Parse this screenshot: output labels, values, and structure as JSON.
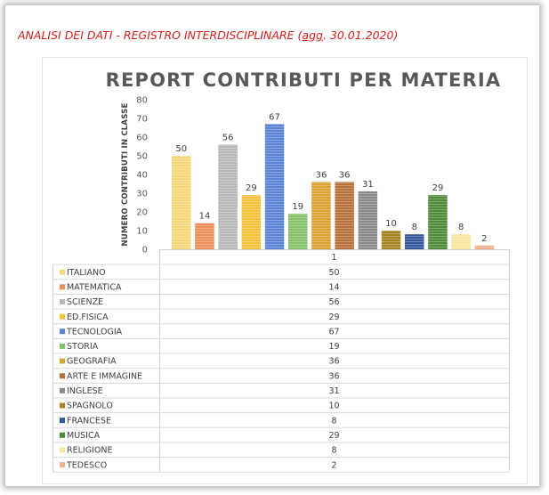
{
  "header": {
    "prefix": "ANALISI DEI DATI - REGISTRO INTERDISCIPLINARE (",
    "underlined": "agg",
    "suffix": ". 30.01.2020)"
  },
  "chart_data": {
    "type": "bar",
    "title": "REPORT CONTRIBUTI PER MATERIA",
    "xlabel": "",
    "ylabel": "NUMERO CONTRIBUTI IN CLASSE",
    "ylim": [
      0,
      80
    ],
    "yticks": [
      0,
      10,
      20,
      30,
      40,
      50,
      60,
      70,
      80
    ],
    "categories": [
      "1"
    ],
    "legend": "data table below chart",
    "series": [
      {
        "name": "ITALIANO",
        "values": [
          50
        ],
        "color": "#f5d77a"
      },
      {
        "name": "MATEMATICA",
        "values": [
          14
        ],
        "color": "#ed8f5a"
      },
      {
        "name": "SCIENZE",
        "values": [
          56
        ],
        "color": "#b8b8b8"
      },
      {
        "name": "ED.FISICA",
        "values": [
          29
        ],
        "color": "#f3c33d"
      },
      {
        "name": "TECNOLOGIA",
        "values": [
          67
        ],
        "color": "#5b83d3"
      },
      {
        "name": "STORIA",
        "values": [
          19
        ],
        "color": "#86c06a"
      },
      {
        "name": "GEOGRAFIA",
        "values": [
          36
        ],
        "color": "#d9a233"
      },
      {
        "name": "ARTE E IMMAGINE",
        "values": [
          36
        ],
        "color": "#b8703a"
      },
      {
        "name": "INGLESE",
        "values": [
          31
        ],
        "color": "#8a8a8a"
      },
      {
        "name": "SPAGNOLO",
        "values": [
          10
        ],
        "color": "#a88524"
      },
      {
        "name": "FRANCESE",
        "values": [
          8
        ],
        "color": "#34579b"
      },
      {
        "name": "MUSICA",
        "values": [
          29
        ],
        "color": "#4f8a3a"
      },
      {
        "name": "RELIGIONE",
        "values": [
          8
        ],
        "color": "#f7e6a0"
      },
      {
        "name": "TEDESCO",
        "values": [
          2
        ],
        "color": "#f0b08c"
      }
    ]
  }
}
